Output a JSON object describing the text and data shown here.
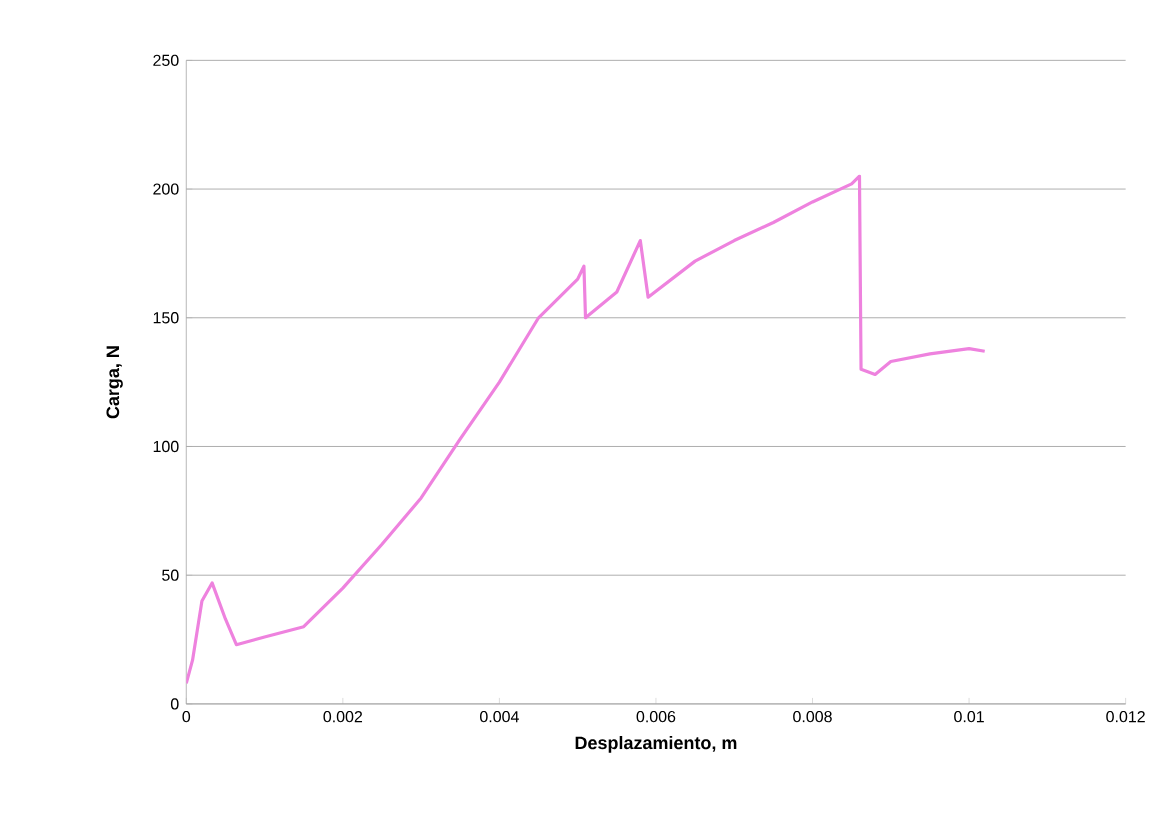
{
  "chart_data": {
    "type": "line",
    "xlabel": "Desplazamiento, m",
    "ylabel": "Carga, N",
    "x": [
      0,
      8e-05,
      0.0002,
      0.00033,
      0.0005,
      0.00064,
      0.001,
      0.0015,
      0.002,
      0.0025,
      0.003,
      0.0035,
      0.004,
      0.0045,
      0.005,
      0.00508,
      0.0051,
      0.0055,
      0.0058,
      0.0059,
      0.0065,
      0.007,
      0.0075,
      0.008,
      0.0085,
      0.0086,
      0.00862,
      0.0088,
      0.009,
      0.0095,
      0.01,
      0.0102
    ],
    "series": [
      {
        "color": "#ee82de",
        "values": [
          8,
          17,
          40,
          47,
          33,
          23,
          26,
          30,
          45,
          62,
          80,
          103,
          125,
          150,
          165,
          170,
          150,
          160,
          180,
          158,
          172,
          180,
          187,
          195,
          202,
          205,
          130,
          128,
          133,
          136,
          138,
          137
        ]
      }
    ],
    "xlim": [
      0,
      0.012
    ],
    "xticks": [
      0,
      0.002,
      0.004,
      0.006,
      0.008,
      0.01,
      0.012
    ],
    "ylim": [
      0,
      250
    ],
    "yticks": [
      0,
      50,
      100,
      150,
      200,
      250
    ],
    "grid": "y",
    "marker": "none",
    "line_style": "solid"
  }
}
